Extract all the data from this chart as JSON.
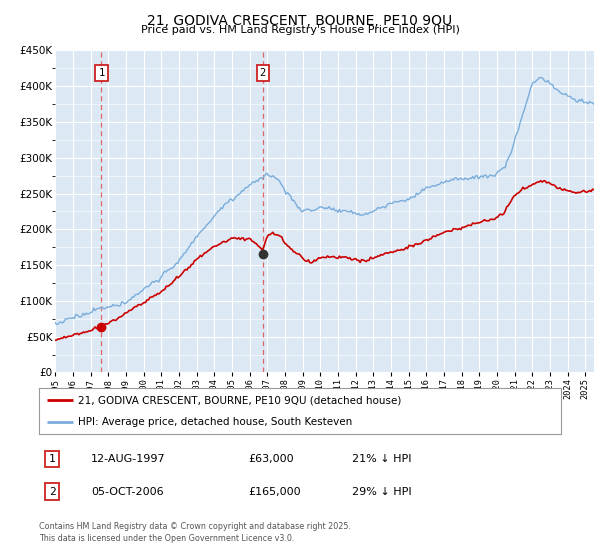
{
  "title1": "21, GODIVA CRESCENT, BOURNE, PE10 9QU",
  "title2": "Price paid vs. HM Land Registry's House Price Index (HPI)",
  "legend1": "21, GODIVA CRESCENT, BOURNE, PE10 9QU (detached house)",
  "legend2": "HPI: Average price, detached house, South Kesteven",
  "footnote": "Contains HM Land Registry data © Crown copyright and database right 2025.\nThis data is licensed under the Open Government Licence v3.0.",
  "sale1_date": "12-AUG-1997",
  "sale1_price": 63000,
  "sale1_label": "£63,000",
  "sale1_hpi": "21% ↓ HPI",
  "sale2_date": "05-OCT-2006",
  "sale2_price": 165000,
  "sale2_label": "£165,000",
  "sale2_hpi": "29% ↓ HPI",
  "sale1_x": 1997.62,
  "sale2_x": 2006.75,
  "ylim": [
    0,
    450000
  ],
  "xlim": [
    1995.0,
    2025.5
  ],
  "bg_color": "#dce9f5",
  "line_color_red": "#cc0000",
  "line_color_blue": "#7aaddb",
  "grid_color": "#ffffff",
  "vline_color": "#dd4444"
}
